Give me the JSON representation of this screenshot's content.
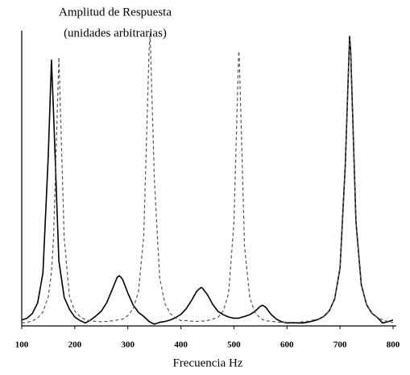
{
  "chart_data": {
    "type": "line",
    "ylabel": [
      "Amplitud de Respuesta",
      "(unidades arbitrarias)"
    ],
    "xlabel": "Frecuencia  Hz",
    "x": [
      100,
      110,
      120,
      130,
      140,
      150,
      156,
      160,
      170,
      180,
      190,
      200,
      210,
      220,
      230,
      240,
      250,
      260,
      270,
      280,
      284,
      290,
      300,
      310,
      320,
      330,
      340,
      342,
      350,
      360,
      370,
      380,
      390,
      400,
      410,
      420,
      430,
      438,
      440,
      450,
      460,
      470,
      480,
      490,
      500,
      509,
      510,
      520,
      530,
      540,
      550,
      554,
      560,
      570,
      580,
      590,
      600,
      610,
      620,
      630,
      640,
      650,
      660,
      670,
      680,
      690,
      700,
      710,
      718,
      720,
      730,
      740,
      750,
      760,
      770,
      780,
      790,
      800
    ],
    "series": [
      {
        "color": "#000000",
        "line_style": "solid",
        "values": [
          2.0,
          2.6,
          4.2,
          7.8,
          18,
          57.6,
          90,
          72,
          22,
          9.7,
          5.6,
          3.0,
          1.8,
          1.0,
          2.0,
          3.4,
          5.0,
          7.8,
          12.1,
          16.5,
          17,
          15.8,
          11.1,
          7.1,
          4.6,
          3.2,
          1.5,
          1.3,
          0.6,
          1.2,
          1.5,
          2.0,
          2.8,
          3.9,
          5.8,
          8.6,
          11.8,
          13,
          12.9,
          10.6,
          7.3,
          4.9,
          3.8,
          3.0,
          2.6,
          2.6,
          2.7,
          3.2,
          3.8,
          5.0,
          6.7,
          7,
          6.3,
          3.9,
          2.3,
          1.4,
          1.0,
          1.1,
          1.0,
          1.0,
          1.3,
          1.7,
          2.3,
          3.3,
          5.2,
          9.2,
          19.6,
          54.8,
          98,
          93.4,
          35.3,
          14,
          7.2,
          4.3,
          2.9,
          1.0,
          1.4,
          2.0
        ]
      },
      {
        "color": "#555555",
        "line_style": "dashed",
        "values": [
          1.0,
          1.2,
          1.7,
          2.7,
          4.7,
          9.9,
          18.2,
          29.9,
          91,
          29.9,
          9.9,
          5.0,
          3.1,
          2.1,
          1.7,
          1.5,
          1.4,
          1.5,
          1.7,
          2.0,
          2.2,
          2.3,
          3.5,
          5.8,
          11.6,
          30.5,
          93.2,
          99,
          49.5,
          16.3,
          7.5,
          4.2,
          2.7,
          1.8,
          1.8,
          1.6,
          1.5,
          1.6,
          1.6,
          1.8,
          2.3,
          2.9,
          5.1,
          11.1,
          35.1,
          93,
          91.2,
          26.8,
          9.3,
          4.5,
          2.6,
          2.2,
          1.7,
          1.6,
          1.3,
          1.2,
          1.3,
          1.2,
          1.2,
          1.4,
          1.6,
          2.0,
          2.4,
          3.4,
          5.3,
          9.3,
          19.4,
          54.2,
          97,
          92.4,
          34.9,
          13.8,
          7.1,
          4.2,
          2.9,
          2.1,
          1.5,
          1.2
        ]
      }
    ],
    "xlim": [
      100,
      800
    ],
    "xticks": [
      100,
      200,
      300,
      400,
      500,
      600,
      700,
      800
    ],
    "ylim": [
      0,
      100
    ],
    "grid": false
  }
}
